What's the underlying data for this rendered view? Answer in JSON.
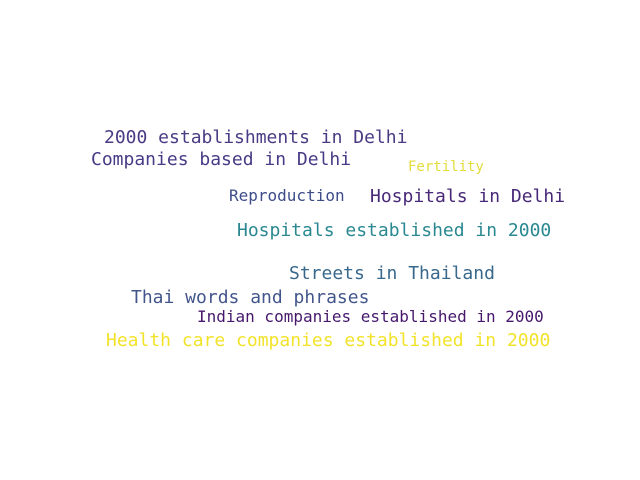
{
  "words": [
    {
      "text": "2000 establishments in Delhi",
      "color": "#4a3b84"
    },
    {
      "text": "Companies based in Delhi",
      "color": "#483a86"
    },
    {
      "text": "Fertility",
      "color": "#e3dc3a"
    },
    {
      "text": "Reproduction",
      "color": "#3e4d8a"
    },
    {
      "text": "Hospitals in Delhi",
      "color": "#482878"
    },
    {
      "text": "Hospitals established in 2000",
      "color": "#2a8890"
    },
    {
      "text": "Streets in Thailand",
      "color": "#38688c"
    },
    {
      "text": "Thai words and phrases",
      "color": "#43568c"
    },
    {
      "text": "Indian companies established in 2000",
      "color": "#46186c"
    },
    {
      "text": "Health care companies established in 2000",
      "color": "#f2e32a"
    }
  ]
}
